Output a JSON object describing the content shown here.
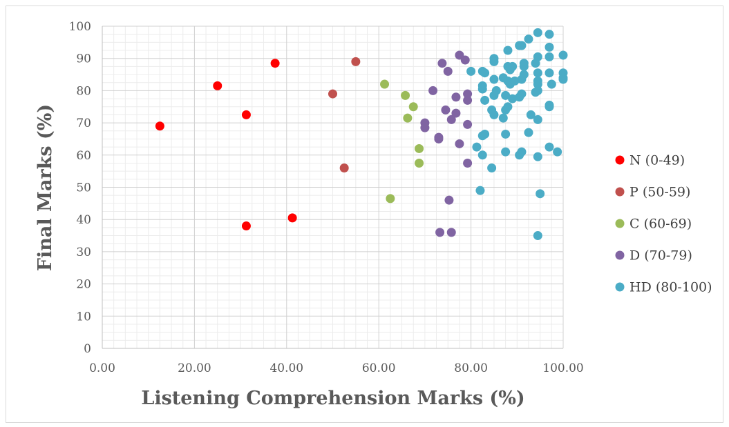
{
  "chart_data": {
    "type": "scatter",
    "title": "",
    "xlabel": "Listening Comprehension Marks (%)",
    "ylabel": "Final Marks (%)",
    "xlim": [
      0,
      100
    ],
    "ylim": [
      0,
      100
    ],
    "x_ticks": [
      "0.00",
      "20.00",
      "40.00",
      "60.00",
      "80.00",
      "100.00"
    ],
    "y_ticks": [
      "0",
      "10",
      "20",
      "30",
      "40",
      "50",
      "60",
      "70",
      "80",
      "90",
      "100"
    ],
    "grid": true,
    "legend_position": "right",
    "series": [
      {
        "name": "N (0-49)",
        "color": "#ff0000",
        "points": [
          [
            12.5,
            69
          ],
          [
            25,
            81.5
          ],
          [
            31.25,
            72.5
          ],
          [
            37.5,
            88.5
          ],
          [
            31.25,
            38
          ],
          [
            41.25,
            40.5
          ]
        ]
      },
      {
        "name": "P (50-59)",
        "color": "#c0504d",
        "points": [
          [
            50,
            79
          ],
          [
            55,
            89
          ],
          [
            52.5,
            56
          ]
        ]
      },
      {
        "name": "C (60-69)",
        "color": "#9bbb59",
        "points": [
          [
            61.25,
            82
          ],
          [
            65.75,
            78.5
          ],
          [
            66.25,
            71.5
          ],
          [
            67.5,
            75
          ],
          [
            68.75,
            62
          ],
          [
            68.75,
            57.5
          ],
          [
            62.5,
            46.5
          ]
        ]
      },
      {
        "name": "D (70-79)",
        "color": "#8064a2",
        "points": [
          [
            71.75,
            80
          ],
          [
            73.75,
            88.5
          ],
          [
            75,
            86
          ],
          [
            77.5,
            91
          ],
          [
            78.75,
            89.5
          ],
          [
            70,
            70
          ],
          [
            70,
            68.5
          ],
          [
            74.5,
            74
          ],
          [
            75.75,
            71
          ],
          [
            76.75,
            73
          ],
          [
            76.75,
            78
          ],
          [
            79.25,
            79
          ],
          [
            79.25,
            77
          ],
          [
            73,
            65.5
          ],
          [
            73,
            65
          ],
          [
            77.5,
            63.5
          ],
          [
            79.25,
            69.5
          ],
          [
            79.25,
            57.5
          ],
          [
            75.25,
            46
          ],
          [
            73.25,
            36
          ],
          [
            75.75,
            36
          ]
        ]
      },
      {
        "name": "HD (80-100)",
        "color": "#4bacc6",
        "points": [
          [
            80,
            86
          ],
          [
            82.5,
            86
          ],
          [
            83,
            85.5
          ],
          [
            82.5,
            81.5
          ],
          [
            82.5,
            80.5
          ],
          [
            85,
            90
          ],
          [
            85,
            89
          ],
          [
            85,
            83.5
          ],
          [
            85,
            78.5
          ],
          [
            85.5,
            80
          ],
          [
            83,
            77
          ],
          [
            84.5,
            74
          ],
          [
            85,
            72.5
          ],
          [
            87,
            84
          ],
          [
            88,
            87.5
          ],
          [
            88.5,
            86.5
          ],
          [
            89,
            87.5
          ],
          [
            88,
            83
          ],
          [
            88.5,
            82
          ],
          [
            89.5,
            83
          ],
          [
            88,
            92.5
          ],
          [
            87.5,
            78.5
          ],
          [
            88,
            75
          ],
          [
            87.5,
            74
          ],
          [
            87,
            71.5
          ],
          [
            87.5,
            66.5
          ],
          [
            87.5,
            61
          ],
          [
            90.5,
            94
          ],
          [
            91,
            94
          ],
          [
            92.5,
            96
          ],
          [
            91.5,
            88.5
          ],
          [
            91.5,
            87.5
          ],
          [
            91.5,
            85
          ],
          [
            91,
            83.5
          ],
          [
            90.5,
            78
          ],
          [
            91,
            79
          ],
          [
            89,
            77.5
          ],
          [
            92.5,
            67
          ],
          [
            93,
            72.5
          ],
          [
            91,
            61
          ],
          [
            90.5,
            60
          ],
          [
            94.5,
            98
          ],
          [
            94.5,
            90.5
          ],
          [
            94,
            88.5
          ],
          [
            94.5,
            85.5
          ],
          [
            94.5,
            83
          ],
          [
            94.5,
            82
          ],
          [
            94.5,
            80
          ],
          [
            94,
            79.5
          ],
          [
            94.5,
            71
          ],
          [
            94.5,
            59.5
          ],
          [
            95,
            48
          ],
          [
            94.5,
            35
          ],
          [
            97,
            97.5
          ],
          [
            97,
            93.5
          ],
          [
            97,
            90.5
          ],
          [
            97,
            85.5
          ],
          [
            97.5,
            82
          ],
          [
            97,
            75.5
          ],
          [
            97,
            75
          ],
          [
            97,
            62.5
          ],
          [
            98.75,
            61
          ],
          [
            100,
            91
          ],
          [
            100,
            85.5
          ],
          [
            100,
            84
          ],
          [
            100,
            83.5
          ],
          [
            81.25,
            62.5
          ],
          [
            82.5,
            66
          ],
          [
            83,
            66.5
          ],
          [
            82.5,
            60
          ],
          [
            84.5,
            56
          ],
          [
            82,
            49
          ]
        ]
      }
    ]
  }
}
